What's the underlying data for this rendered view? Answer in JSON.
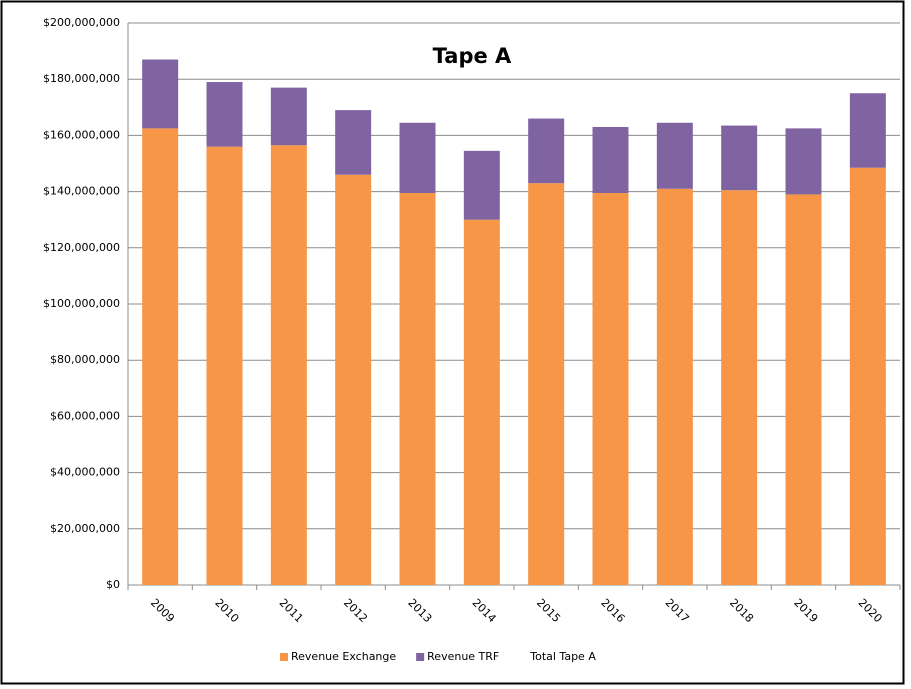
{
  "chart_data": {
    "type": "stacked-bar",
    "title": "Tape A",
    "categories": [
      "2009",
      "2010",
      "2011",
      "2012",
      "2013",
      "2014",
      "2015",
      "2016",
      "2017",
      "2018",
      "2019",
      "2020"
    ],
    "series": [
      {
        "name": "Revenue Exchange",
        "color": "#f79646",
        "values": [
          162500000,
          156000000,
          156500000,
          146000000,
          139500000,
          130000000,
          143000000,
          139500000,
          141000000,
          140500000,
          139000000,
          148500000
        ]
      },
      {
        "name": "Revenue TRF",
        "color": "#8064a2",
        "values": [
          24500000,
          23000000,
          20500000,
          23000000,
          25000000,
          24500000,
          23000000,
          23500000,
          23500000,
          23000000,
          23500000,
          26500000
        ]
      },
      {
        "name": "Total Tape A",
        "color": "none"
      }
    ],
    "ylim": [
      0,
      200000000
    ],
    "yticks": [
      {
        "value": 0,
        "label": "$0"
      },
      {
        "value": 20000000,
        "label": "$20,000,000"
      },
      {
        "value": 40000000,
        "label": "$40,000,000"
      },
      {
        "value": 60000000,
        "label": "$60,000,000"
      },
      {
        "value": 80000000,
        "label": "$80,000,000"
      },
      {
        "value": 100000000,
        "label": "$100,000,000"
      },
      {
        "value": 120000000,
        "label": "$120,000,000"
      },
      {
        "value": 140000000,
        "label": "$140,000,000"
      },
      {
        "value": 160000000,
        "label": "$160,000,000"
      },
      {
        "value": 180000000,
        "label": "$180,000,000"
      },
      {
        "value": 200000000,
        "label": "$200,000,000"
      }
    ],
    "grid": true,
    "legend": "bottom"
  }
}
